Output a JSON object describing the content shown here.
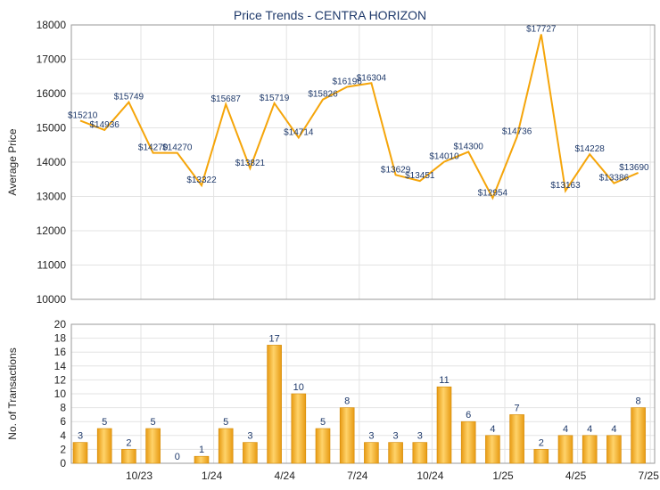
{
  "chart_data": [
    {
      "type": "line",
      "title": "Price Trends - CENTRA HORIZON",
      "ylabel": "Average Price",
      "ylim": [
        10000,
        18000
      ],
      "yticks": [
        10000,
        11000,
        12000,
        13000,
        14000,
        15000,
        16000,
        17000,
        18000
      ],
      "xtick_labels": [
        "10/23",
        "1/24",
        "4/24",
        "7/24",
        "10/24",
        "1/25",
        "4/25",
        "7/25"
      ],
      "grid": true,
      "color": "#f5a50a",
      "values": [
        15210,
        14936,
        15749,
        14270,
        14270,
        13322,
        15687,
        13821,
        15719,
        14714,
        15826,
        16196,
        16304,
        13629,
        13451,
        14010,
        14300,
        12954,
        14736,
        17727,
        13163,
        14228,
        13386,
        13690
      ],
      "labels": [
        "$15210",
        "$14936",
        "$15749",
        "$14270",
        "$14270",
        "$13322",
        "$15687",
        "$13821",
        "$15719",
        "$14714",
        "$15826",
        "$16196",
        "$16304",
        "$13629",
        "$13451",
        "$14010",
        "$14300",
        "$12954",
        "$14736",
        "$17727",
        "$13163",
        "$14228",
        "$13386",
        "$13690"
      ]
    },
    {
      "type": "bar",
      "ylabel": "No. of Transactions",
      "ylim": [
        0,
        20
      ],
      "yticks": [
        0,
        2,
        4,
        6,
        8,
        10,
        12,
        14,
        16,
        18,
        20
      ],
      "xtick_labels": [
        "10/23",
        "1/24",
        "4/24",
        "7/24",
        "10/24",
        "1/25",
        "4/25",
        "7/25"
      ],
      "grid": true,
      "color": "#f2b132",
      "values": [
        3,
        5,
        2,
        5,
        0,
        1,
        5,
        3,
        17,
        10,
        5,
        8,
        3,
        3,
        3,
        11,
        6,
        4,
        7,
        2,
        4,
        4,
        4,
        8
      ]
    }
  ]
}
